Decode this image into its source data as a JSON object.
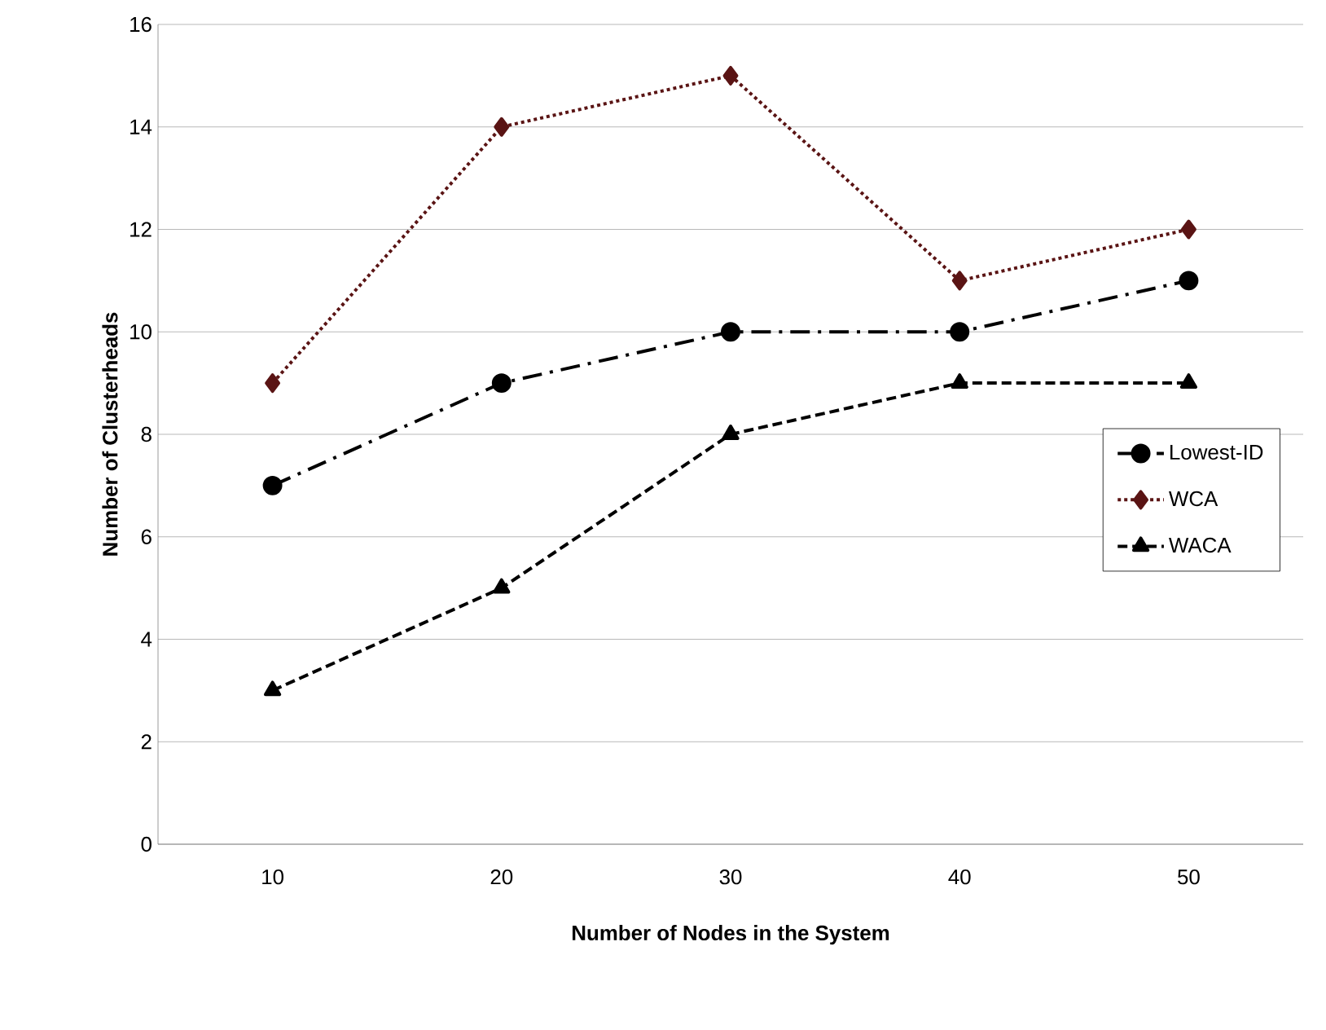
{
  "chart_data": {
    "type": "line",
    "xlabel": "Number of Nodes in the System",
    "ylabel": "Number of Clusterheads",
    "categories": [
      "10",
      "20",
      "30",
      "40",
      "50"
    ],
    "series": [
      {
        "name": "Lowest-ID",
        "color": "#000000",
        "marker": "circle",
        "line_style": "dashdot",
        "values": [
          7,
          9,
          10,
          10,
          11
        ]
      },
      {
        "name": "WCA",
        "color": "#5a1414",
        "marker": "diamond",
        "line_style": "dotted",
        "values": [
          9,
          14,
          15,
          11,
          12
        ]
      },
      {
        "name": "WACA",
        "color": "#000000",
        "marker": "triangle",
        "line_style": "dashed",
        "values": [
          3,
          5,
          8,
          9,
          9
        ]
      }
    ],
    "ylim": [
      0,
      16
    ],
    "yticks": [
      0,
      2,
      4,
      6,
      8,
      10,
      12,
      14,
      16
    ],
    "grid": "y",
    "legend": "right"
  }
}
